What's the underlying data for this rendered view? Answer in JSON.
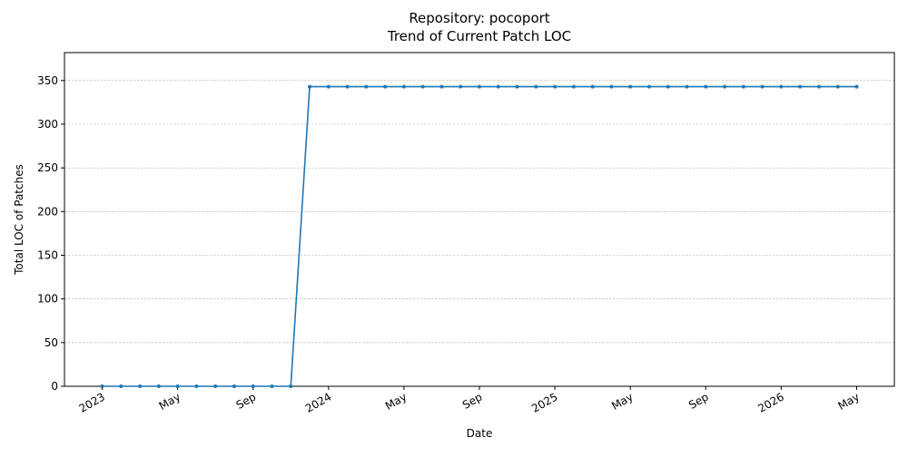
{
  "chart_data": {
    "type": "line",
    "title": "Repository: pocoport",
    "subtitle": "Trend of Current Patch LOC",
    "x_label": "Date",
    "y_label": "Total LOC of Patches",
    "x": [
      "2023-01",
      "2023-02",
      "2023-03",
      "2023-04",
      "2023-05",
      "2023-06",
      "2023-07",
      "2023-08",
      "2023-09",
      "2023-10",
      "2023-11",
      "2023-12",
      "2024-01",
      "2024-02",
      "2024-03",
      "2024-04",
      "2024-05",
      "2024-06",
      "2024-07",
      "2024-08",
      "2024-09",
      "2024-10",
      "2024-11",
      "2024-12",
      "2025-01",
      "2025-02",
      "2025-03",
      "2025-04",
      "2025-05",
      "2025-06",
      "2025-07",
      "2025-08",
      "2025-09",
      "2025-10",
      "2025-11",
      "2025-12",
      "2026-01",
      "2026-02",
      "2026-03",
      "2026-04",
      "2026-05"
    ],
    "series": [
      {
        "color": "#1f77b4",
        "values": [
          0,
          0,
          0,
          0,
          0,
          0,
          0,
          0,
          0,
          0,
          0,
          343,
          343,
          343,
          343,
          343,
          343,
          343,
          343,
          343,
          343,
          343,
          343,
          343,
          343,
          343,
          343,
          343,
          343,
          343,
          343,
          343,
          343,
          343,
          343,
          343,
          343,
          343,
          343,
          343,
          343
        ]
      }
    ],
    "xlim": [
      "2022-11",
      "2026-07"
    ],
    "xticks": [
      {
        "value": "2023-01",
        "label": "2023"
      },
      {
        "value": "2023-05",
        "label": "May"
      },
      {
        "value": "2023-09",
        "label": "Sep"
      },
      {
        "value": "2024-01",
        "label": "2024"
      },
      {
        "value": "2024-05",
        "label": "May"
      },
      {
        "value": "2024-09",
        "label": "Sep"
      },
      {
        "value": "2025-01",
        "label": "2025"
      },
      {
        "value": "2025-05",
        "label": "May"
      },
      {
        "value": "2025-09",
        "label": "Sep"
      },
      {
        "value": "2026-01",
        "label": "2026"
      },
      {
        "value": "2026-05",
        "label": "May"
      }
    ],
    "ylim": [
      0,
      382
    ],
    "yticks": [
      0,
      50,
      100,
      150,
      200,
      250,
      300,
      350
    ],
    "grid": true
  }
}
